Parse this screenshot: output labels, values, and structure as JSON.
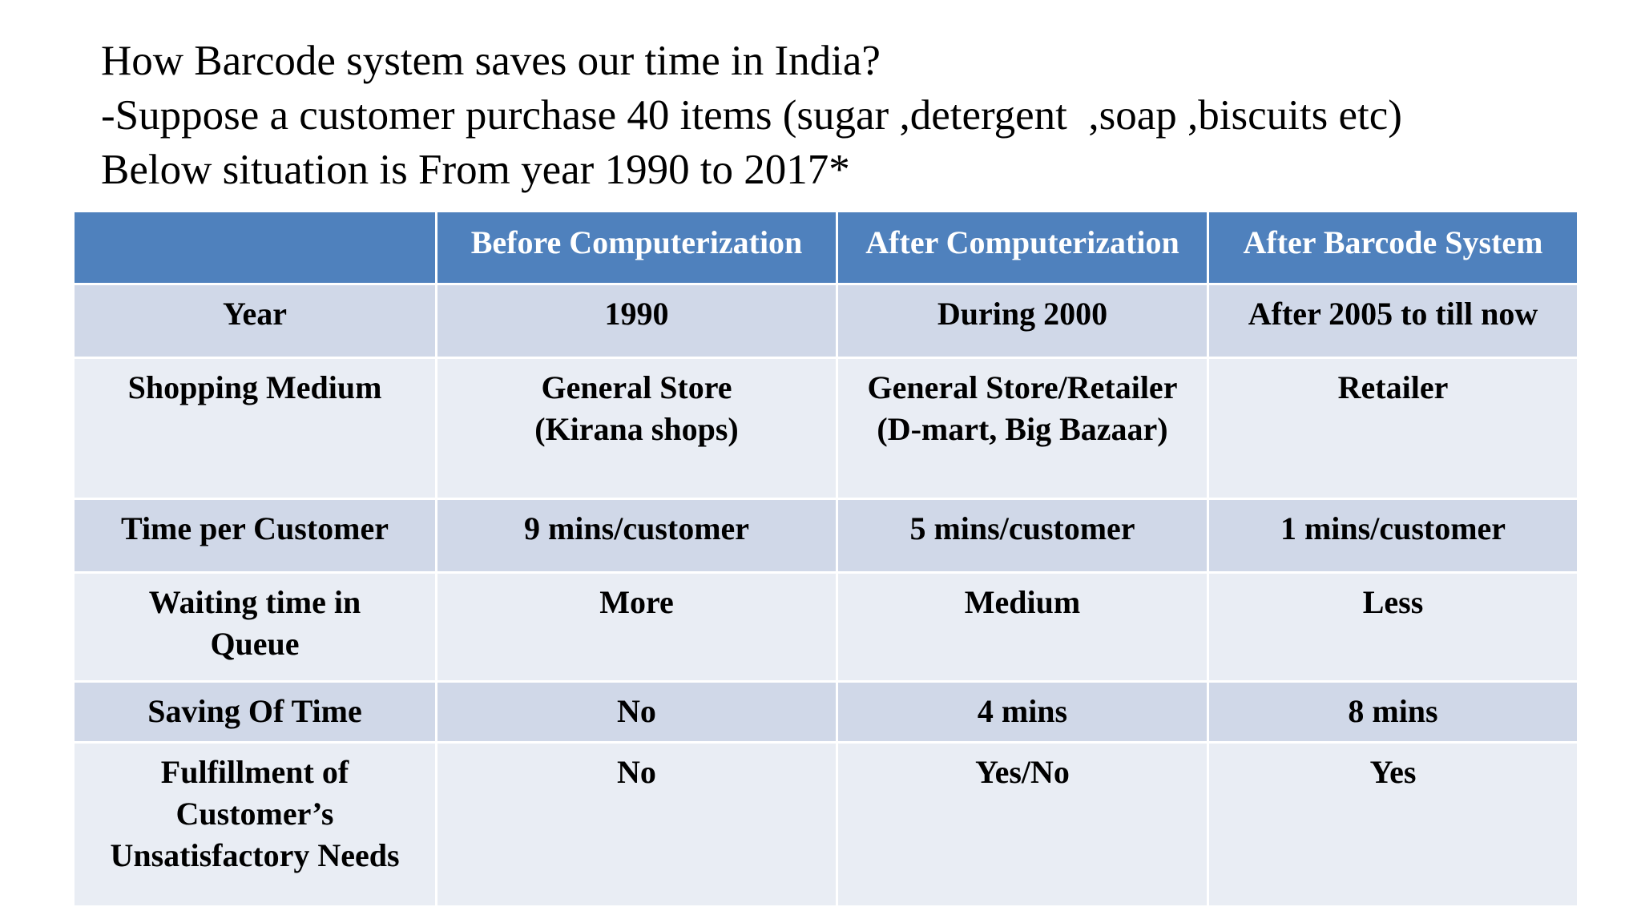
{
  "title": {
    "line1": "How Barcode system saves our time in India?",
    "line2": "-Suppose a customer purchase 40 items (sugar ,detergent  ,soap ,biscuits etc)",
    "line3": "Below situation is From year 1990 to 2017*"
  },
  "table": {
    "headers": [
      "",
      "Before Computerization",
      "After Computerization",
      "After Barcode System"
    ],
    "rows": [
      {
        "label": "Year",
        "cells": [
          "1990",
          "During 2000",
          "After 2005 to till now"
        ]
      },
      {
        "label": "Shopping Medium",
        "cells": [
          "General Store\n(Kirana shops)",
          "General Store/Retailer\n(D-mart, Big Bazaar)",
          "Retailer"
        ]
      },
      {
        "label": "Time per Customer",
        "cells": [
          "9 mins/customer",
          "5 mins/customer",
          "1 mins/customer"
        ]
      },
      {
        "label": "Waiting time in\nQueue",
        "cells": [
          "More",
          "Medium",
          "Less"
        ]
      },
      {
        "label": "Saving Of Time",
        "cells": [
          "No",
          "4 mins",
          "8 mins"
        ]
      },
      {
        "label": "Fulfillment of\nCustomer’s\nUnsatisfactory Needs",
        "cells": [
          "No",
          "Yes/No",
          "Yes"
        ]
      }
    ]
  },
  "colors": {
    "header_bg": "#4f81bd",
    "row_dark": "#d0d8e8",
    "row_light": "#e9edf4"
  }
}
